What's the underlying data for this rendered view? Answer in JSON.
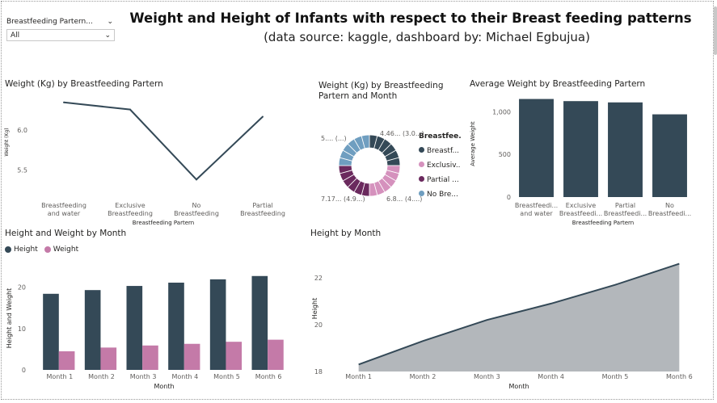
{
  "header": {
    "title": "Weight and Height of Infants with respect to their Breast feeding patterns",
    "subtitle": "(data source: kaggle, dashboard by: Michael Egbujua)"
  },
  "slicer": {
    "title": "Breastfeeding Partern...",
    "value": "All"
  },
  "colors": {
    "navy": "#344957",
    "pink": "#c47aa8",
    "plum": "#6b2a5e",
    "lightpink": "#d591bd",
    "steel": "#6f9ec0",
    "area": "#b3b7bb",
    "axis": "#605e5c"
  },
  "chart_data": [
    {
      "id": "weight-line",
      "type": "line",
      "title": "Weight (Kg) by Breastfeeding Partern",
      "xlabel": "Breastfeeding Partern",
      "ylabel": "Weight (Kg)",
      "categories": [
        "Breastfeeding and water",
        "Exclusive Breastfeeding",
        "No Breastfeeding",
        "Partial Breastfeeding"
      ],
      "values": [
        6.35,
        6.26,
        5.38,
        6.17
      ],
      "yticks": [
        "5.5",
        "6.0"
      ],
      "ylim": [
        5.2,
        6.5
      ]
    },
    {
      "id": "weight-donut",
      "type": "pie",
      "title": "Weight (Kg) by Breastfeeding Partern and Month",
      "legend_title": "Breastfee...",
      "legend": [
        "Breastf...",
        "Exclusiv...",
        "Partial ...",
        "No Bre..."
      ],
      "labels": [
        "4.46... (3.0...)",
        "6.8... (4....)",
        "7.17... (4.9...)",
        "5.... (...)"
      ]
    },
    {
      "id": "avg-weight-bar",
      "type": "bar",
      "title": "Average Weight by Breastfeeding Partern",
      "xlabel": "Breastfeeding Partern",
      "ylabel": "Average Weight",
      "categories": [
        "Breastfeedi... and water",
        "Exclusive Breastfeedi...",
        "Partial Breastfeedi...",
        "No Breastfeedi..."
      ],
      "values": [
        1150,
        1125,
        1110,
        970
      ],
      "yticks": [
        "0",
        "500",
        "1,000"
      ],
      "ylim": [
        0,
        1250
      ]
    },
    {
      "id": "height-weight-month",
      "type": "bar",
      "title": "Height and Weight by Month",
      "xlabel": "Month",
      "ylabel": "Height and Weight",
      "categories": [
        "Month 1",
        "Month 2",
        "Month 3",
        "Month 4",
        "Month 5",
        "Month 6"
      ],
      "series": [
        {
          "name": "Height",
          "values": [
            18.4,
            19.3,
            20.3,
            21.1,
            21.9,
            22.7
          ]
        },
        {
          "name": "Weight",
          "values": [
            4.5,
            5.4,
            5.9,
            6.3,
            6.8,
            7.3
          ]
        }
      ],
      "yticks": [
        "0",
        "10",
        "20"
      ],
      "ylim": [
        0,
        25
      ]
    },
    {
      "id": "height-month",
      "type": "area",
      "title": "Height by Month",
      "xlabel": "Month",
      "ylabel": "Height",
      "categories": [
        "Month 1",
        "Month 2",
        "Month 3",
        "Month 4",
        "Month 5",
        "Month 6"
      ],
      "values": [
        18.3,
        19.3,
        20.2,
        20.9,
        21.7,
        22.6
      ],
      "yticks": [
        "18",
        "20",
        "22"
      ],
      "ylim": [
        18,
        23
      ]
    }
  ]
}
